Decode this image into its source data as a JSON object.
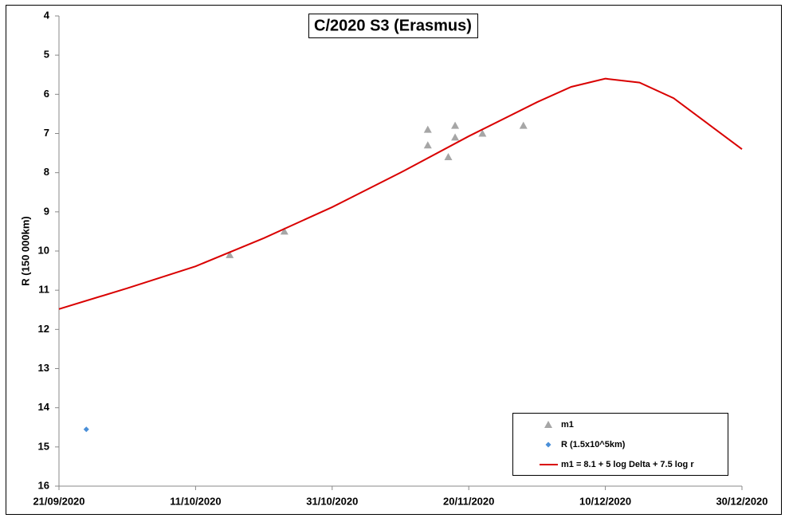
{
  "chart_data": {
    "type": "scatter",
    "title": "C/2020 S3 (Erasmus)",
    "ylabel": "R (150 000km)",
    "xlim": [
      "21/09/2020",
      "30/12/2020"
    ],
    "xticks": [
      "21/09/2020",
      "11/10/2020",
      "31/10/2020",
      "20/11/2020",
      "10/12/2020",
      "30/12/2020"
    ],
    "ylim": [
      4,
      16
    ],
    "yticks": [
      4,
      5,
      6,
      7,
      8,
      9,
      10,
      11,
      12,
      13,
      14,
      15,
      16
    ],
    "invert_y": true,
    "legend": "bottom right",
    "series": [
      {
        "name": "m1",
        "type": "scatter",
        "marker": "triangle",
        "color": "#a6a6a6",
        "x": [
          "16/10/2020",
          "24/10/2020",
          "14/11/2020",
          "14/11/2020",
          "17/11/2020",
          "18/11/2020",
          "18/11/2020",
          "22/11/2020",
          "28/11/2020"
        ],
        "values": [
          10.1,
          9.5,
          6.9,
          7.3,
          7.6,
          6.8,
          7.1,
          7.0,
          6.8
        ]
      },
      {
        "name": "R (1.5x10^5km)",
        "type": "scatter",
        "marker": "diamond",
        "color": "#4a8fd8",
        "x": [
          "25/09/2020"
        ],
        "values": [
          14.55
        ]
      },
      {
        "name": "m1 = 8.1 + 5 log Delta + 7.5 log r",
        "type": "line",
        "color": "#d90000",
        "x": [
          "21/09/2020",
          "01/10/2020",
          "11/10/2020",
          "21/10/2020",
          "31/10/2020",
          "10/11/2020",
          "20/11/2020",
          "30/11/2020",
          "05/12/2020",
          "10/12/2020",
          "15/12/2020",
          "20/12/2020",
          "25/12/2020",
          "30/12/2020"
        ],
        "values": [
          11.48,
          10.95,
          10.39,
          9.67,
          8.88,
          8.0,
          7.07,
          6.2,
          5.81,
          5.6,
          5.7,
          6.1,
          6.75,
          7.4
        ]
      }
    ]
  }
}
